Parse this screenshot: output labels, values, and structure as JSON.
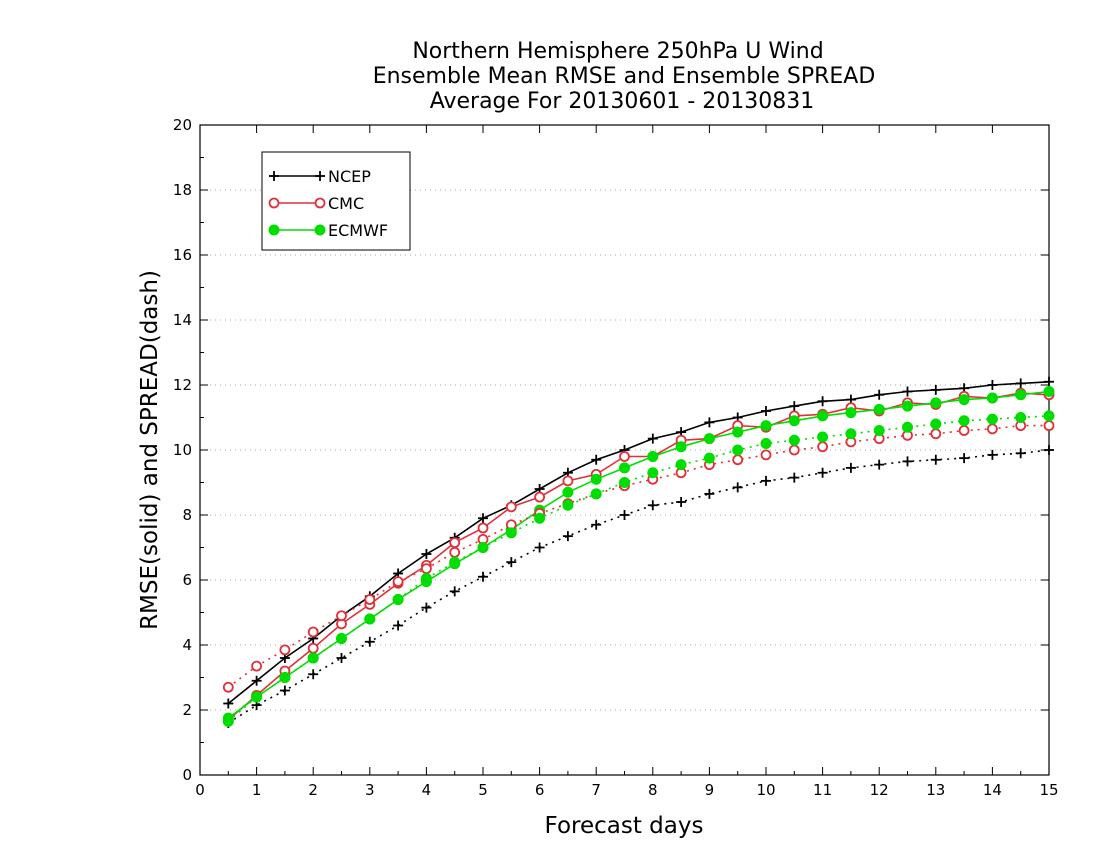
{
  "chart_data": {
    "type": "line",
    "title": [
      "Northern Hemisphere 250hPa U Wind",
      "Ensemble Mean RMSE and Ensemble SPREAD",
      "Average For 20130601 - 20130831"
    ],
    "xlabel": "Forecast days",
    "ylabel": "RMSE(solid) and SPREAD(dash)",
    "xlim": [
      0,
      15
    ],
    "ylim": [
      0,
      20
    ],
    "xticks": [
      0,
      1,
      2,
      3,
      4,
      5,
      6,
      7,
      8,
      9,
      10,
      11,
      12,
      13,
      14,
      15
    ],
    "yticks": [
      0,
      2,
      4,
      6,
      8,
      10,
      12,
      14,
      16,
      18,
      20
    ],
    "grid": "horizontal dotted",
    "legend_position": "top-left",
    "x": [
      0.5,
      1,
      1.5,
      2,
      2.5,
      3,
      3.5,
      4,
      4.5,
      5,
      5.5,
      6,
      6.5,
      7,
      7.5,
      8,
      8.5,
      9,
      9.5,
      10,
      10.5,
      11,
      11.5,
      12,
      12.5,
      13,
      13.5,
      14,
      14.5,
      15
    ],
    "series": [
      {
        "name": "NCEP",
        "kind": "RMSE",
        "color": "#000000",
        "marker": "plus",
        "values": [
          2.2,
          2.9,
          3.6,
          4.2,
          4.9,
          5.5,
          6.2,
          6.8,
          7.3,
          7.9,
          8.3,
          8.8,
          9.3,
          9.7,
          10.0,
          10.35,
          10.55,
          10.85,
          11.0,
          11.2,
          11.35,
          11.5,
          11.55,
          11.7,
          11.8,
          11.85,
          11.9,
          12.0,
          12.05,
          12.1
        ]
      },
      {
        "name": "CMC",
        "kind": "RMSE",
        "color": "#e0303a",
        "marker": "circle",
        "values": [
          1.7,
          2.45,
          3.2,
          3.9,
          4.65,
          5.25,
          5.9,
          6.45,
          7.15,
          7.6,
          8.25,
          8.55,
          9.05,
          9.25,
          9.8,
          9.8,
          10.3,
          10.35,
          10.75,
          10.7,
          11.05,
          11.1,
          11.3,
          11.2,
          11.45,
          11.4,
          11.65,
          11.6,
          11.75,
          11.7
        ]
      },
      {
        "name": "ECMWF",
        "kind": "RMSE",
        "color": "#00dd00",
        "marker": "dot",
        "values": [
          1.75,
          2.4,
          3.0,
          3.6,
          4.2,
          4.8,
          5.4,
          5.95,
          6.5,
          7.0,
          7.55,
          8.15,
          8.7,
          9.1,
          9.45,
          9.8,
          10.1,
          10.35,
          10.55,
          10.75,
          10.9,
          11.05,
          11.15,
          11.25,
          11.35,
          11.45,
          11.55,
          11.6,
          11.7,
          11.8
        ]
      },
      {
        "name": "NCEP",
        "kind": "SPREAD",
        "color": "#000000",
        "marker": "plus",
        "values": [
          1.6,
          2.15,
          2.6,
          3.1,
          3.6,
          4.1,
          4.6,
          5.15,
          5.65,
          6.1,
          6.55,
          7.0,
          7.35,
          7.7,
          8.0,
          8.3,
          8.4,
          8.65,
          8.85,
          9.05,
          9.15,
          9.3,
          9.45,
          9.55,
          9.65,
          9.7,
          9.75,
          9.85,
          9.9,
          10.0
        ]
      },
      {
        "name": "CMC",
        "kind": "SPREAD",
        "color": "#e0303a",
        "marker": "circle",
        "values": [
          2.7,
          3.35,
          3.85,
          4.4,
          4.9,
          5.4,
          5.95,
          6.35,
          6.85,
          7.25,
          7.7,
          8.05,
          8.35,
          8.65,
          8.9,
          9.1,
          9.3,
          9.55,
          9.7,
          9.85,
          10.0,
          10.1,
          10.25,
          10.35,
          10.45,
          10.5,
          10.6,
          10.65,
          10.75,
          10.75
        ]
      },
      {
        "name": "ECMWF",
        "kind": "SPREAD",
        "color": "#00dd00",
        "marker": "dot",
        "values": [
          1.65,
          2.4,
          3.0,
          3.6,
          4.2,
          4.8,
          5.4,
          6.05,
          6.55,
          7.0,
          7.45,
          7.9,
          8.3,
          8.65,
          9.0,
          9.3,
          9.55,
          9.75,
          10.0,
          10.2,
          10.3,
          10.4,
          10.5,
          10.6,
          10.7,
          10.8,
          10.9,
          10.95,
          11.0,
          11.05
        ]
      }
    ]
  }
}
